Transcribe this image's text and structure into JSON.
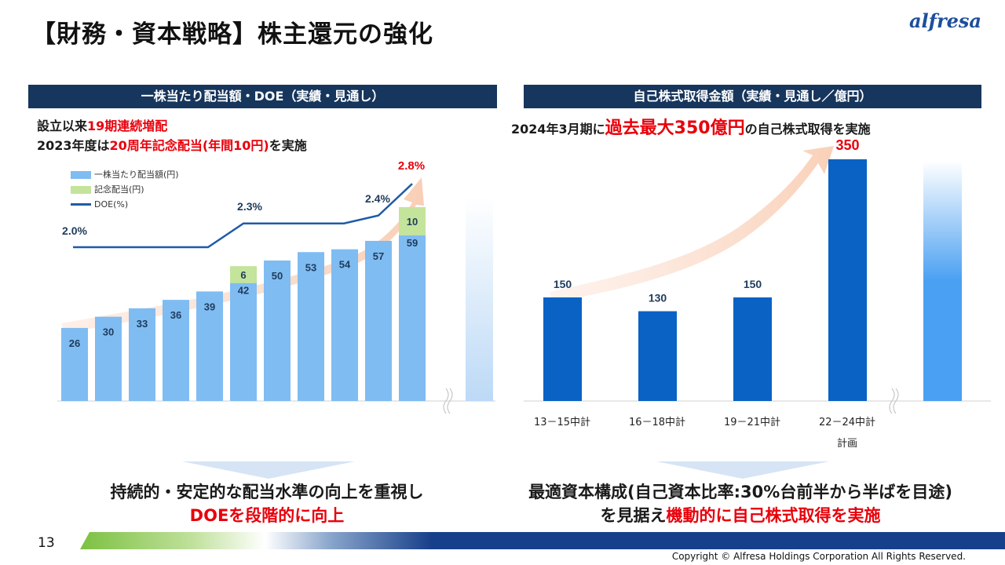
{
  "title": "【財務・資本戦略】株主還元の強化",
  "logo": "alfresa",
  "left_panel": {
    "header": "一株当たり配当額・DOE（実績・見通し）",
    "intro_line1_a": "設立以来",
    "intro_line1_b": "19期連続増配",
    "intro_line2_a": "2023年度は",
    "intro_line2_b": "20周年記念配当(年間10円)",
    "intro_line2_c": "を実施",
    "legend": {
      "bar": "一株当たり配当額(円)",
      "memorial": "記念配当(円)",
      "line": "DOE(%)"
    },
    "summary_line1": "持続的・安定的な配当水準の向上を重視し",
    "summary_line2": "DOEを段階的に向上"
  },
  "right_panel": {
    "header": "自己株式取得金額（実績・見通し／億円）",
    "intro_a": "2024年3月期に",
    "intro_b": "過去最大350億円",
    "intro_c": "の自己株式取得を実施",
    "summary_line1": "最適資本構成(自己資本比率:30%台前半から半ばを目途)",
    "summary_line2_a": "を見据え",
    "summary_line2_b": "機動的に自己株式取得を実施"
  },
  "chart_data": [
    {
      "type": "bar",
      "series": [
        {
          "name": "一株当たり配当額(円)",
          "values": [
            26,
            30,
            33,
            36,
            39,
            42,
            50,
            53,
            54,
            57,
            59
          ],
          "color": "#7fbcf2"
        },
        {
          "name": "記念配当(円)",
          "values": [
            null,
            null,
            null,
            null,
            null,
            6,
            null,
            null,
            null,
            null,
            10
          ],
          "color": "#c3e49a"
        },
        {
          "name": "DOE(%)",
          "values": [
            2.0,
            2.0,
            2.0,
            2.0,
            2.0,
            2.3,
            2.3,
            2.3,
            2.3,
            2.4,
            2.8
          ],
          "color": "#1f5ba6"
        }
      ],
      "doe_labels": [
        "2.0%",
        "2.3%",
        "2.4%",
        "2.8%"
      ]
    },
    {
      "type": "bar",
      "categories": [
        "13－15中計",
        "16－18中計",
        "19－21中計",
        "22－24中計"
      ],
      "category_note": "計画",
      "values": [
        150,
        130,
        150,
        350
      ],
      "color": "#0a62c4"
    }
  ],
  "page_number": "13",
  "copyright": "Copyright © Alfresa Holdings Corporation All Rights Reserved."
}
